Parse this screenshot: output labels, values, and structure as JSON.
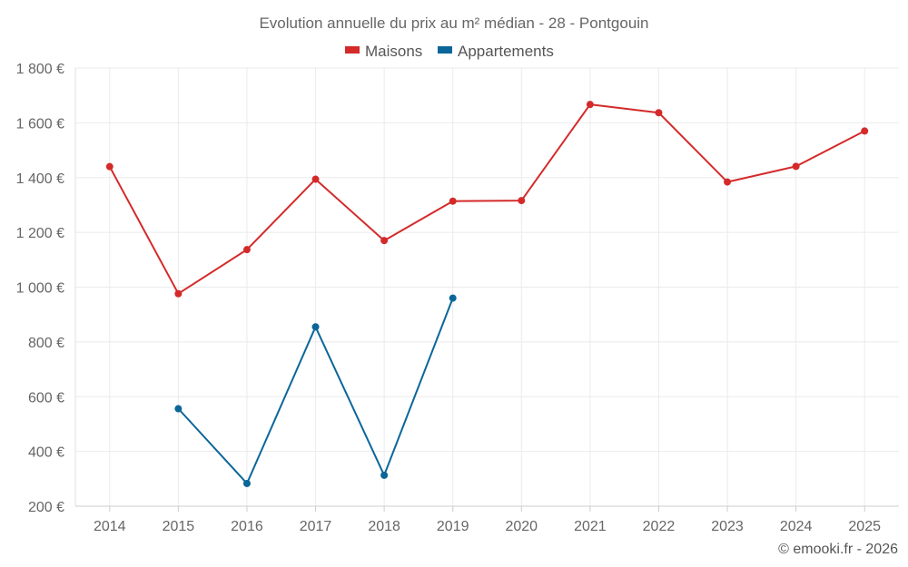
{
  "chart_data": {
    "type": "line",
    "title": "Evolution annuelle du prix au m² médian - 28 - Pontgouin",
    "xlabel": "",
    "ylabel": "",
    "categories": [
      "2014",
      "2015",
      "2016",
      "2017",
      "2018",
      "2019",
      "2020",
      "2021",
      "2022",
      "2023",
      "2024",
      "2025"
    ],
    "ylim": [
      200,
      1800
    ],
    "yticks": [
      200,
      400,
      600,
      800,
      1000,
      1200,
      1400,
      1600,
      1800
    ],
    "ytick_labels": [
      "200 €",
      "400 €",
      "600 €",
      "800 €",
      "1 000 €",
      "1 200 €",
      "1 400 €",
      "1 600 €",
      "1 800 €"
    ],
    "grid": true,
    "legend_position": "top-center",
    "series": [
      {
        "name": "Maisons",
        "color": "#d42a2a",
        "values": [
          1440,
          976,
          1137,
          1394,
          1170,
          1314,
          1316,
          1667,
          1637,
          1384,
          1441,
          1570
        ]
      },
      {
        "name": "Appartements",
        "color": "#0a6699",
        "values": [
          null,
          556,
          283,
          855,
          313,
          960,
          null,
          null,
          null,
          null,
          null,
          null
        ]
      }
    ]
  },
  "credit": "© emooki.fr - 2026"
}
